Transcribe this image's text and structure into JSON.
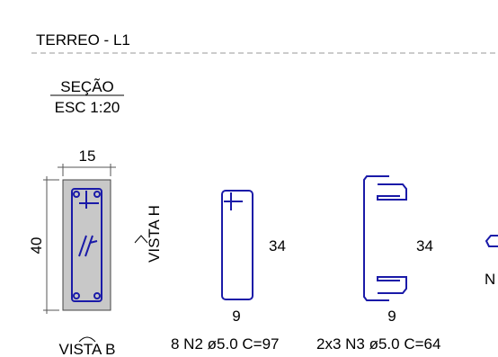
{
  "header": {
    "title": "TERREO - L1"
  },
  "section": {
    "title": "SEÇÃO",
    "scale": "ESC 1:20",
    "width": "15",
    "height": "40",
    "view_h": "VISTA H",
    "view_b": "VISTA B"
  },
  "bars": [
    {
      "length": "34",
      "width": "9",
      "label": "8 N2 ø5.0 C=97"
    },
    {
      "length": "34",
      "width": "9",
      "label": "2x3 N3 ø5.0 C=64"
    },
    {
      "label": "N"
    }
  ]
}
